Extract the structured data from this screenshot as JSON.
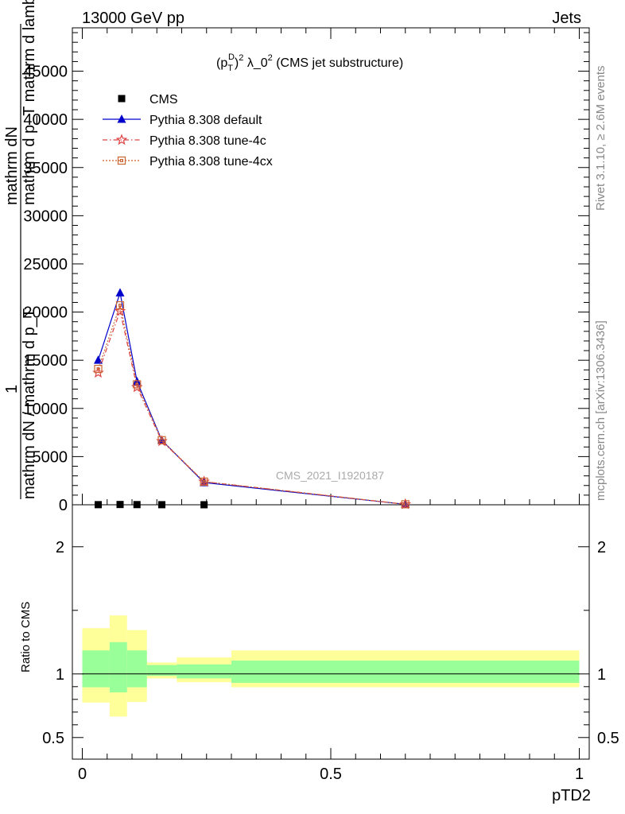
{
  "header": {
    "left": "13000 GeV pp",
    "right": "Jets"
  },
  "side_labels": {
    "rivet": "Rivet 3.1.10, ≥ 2.6M events",
    "mcplots": "mcplots.cern.ch [arXiv:1306.3436]"
  },
  "watermark": "CMS_2021_I1920187",
  "plot_title": {
    "main": "(p",
    "sub": "T",
    "sup": "D",
    "rest": ")",
    "exp": "2",
    "tail": " λ_0",
    "exp2": "2",
    "end": " (CMS jet substructure)"
  },
  "y_title": {
    "numerator": "mathrm dN",
    "denominator_line1": "mathrm d p_T mathrm d lambda",
    "prefix_one": "1",
    "prefix_line": "mathrm dN / mathrm d p_T"
  },
  "ratio_ylabel": "Ratio to CMS",
  "xlabel": "pTD2",
  "colors": {
    "cms": "#000000",
    "default": "#0000cc",
    "tune4c": "#dd4444",
    "tune4cx": "#cc6633",
    "band_inner": "#99ff99",
    "band_outer": "#ffff99"
  },
  "chart_data": [
    {
      "type": "line",
      "panel": "main",
      "xlim": [
        -0.02,
        1.02
      ],
      "ylim": [
        0,
        49500
      ],
      "xticks": [
        0,
        0.5,
        1
      ],
      "yticks": [
        0,
        5000,
        10000,
        15000,
        20000,
        25000,
        30000,
        35000,
        40000,
        45000
      ],
      "ytick_labels": [
        "0",
        "5000",
        "10000",
        "15000",
        "20000",
        "25000",
        "30000",
        "35000",
        "40000",
        "45000"
      ],
      "legend_position": "top-left",
      "series": [
        {
          "name": "CMS",
          "marker": "square",
          "x": [
            0.032,
            0.076,
            0.11,
            0.16,
            0.245
          ],
          "y": [
            12,
            28,
            18,
            8,
            3
          ]
        },
        {
          "name": "Pythia 8.308 default",
          "marker": "triangle",
          "x": [
            0.032,
            0.076,
            0.11,
            0.16,
            0.245,
            0.65
          ],
          "y": [
            15000,
            22000,
            12800,
            6700,
            2300,
            50
          ]
        },
        {
          "name": "Pythia 8.308 tune-4c",
          "marker": "star",
          "x": [
            0.032,
            0.076,
            0.11,
            0.16,
            0.245,
            0.65
          ],
          "y": [
            13700,
            20100,
            12200,
            6600,
            2400,
            50
          ]
        },
        {
          "name": "Pythia 8.308 tune-4cx",
          "marker": "open-square",
          "x": [
            0.032,
            0.076,
            0.11,
            0.16,
            0.245,
            0.65
          ],
          "y": [
            14100,
            20700,
            12500,
            6700,
            2400,
            50
          ]
        }
      ]
    },
    {
      "type": "area",
      "panel": "ratio",
      "xlim": [
        -0.02,
        1.02
      ],
      "ylim": [
        0.33,
        2.33
      ],
      "xticks": [
        0,
        0.5,
        1
      ],
      "xtick_labels": [
        "0",
        "0.5",
        "1"
      ],
      "yticks": [
        0.5,
        1,
        2
      ],
      "ytick_labels": [
        "0.5",
        "1",
        "2"
      ],
      "reference_line": 1,
      "bands": [
        {
          "x0": 0.0,
          "x1": 0.055,
          "inner": [
            0.895,
            1.185
          ],
          "outer": [
            0.775,
            1.36
          ]
        },
        {
          "x0": 0.055,
          "x1": 0.09,
          "inner": [
            0.855,
            1.25
          ],
          "outer": [
            0.665,
            1.46
          ]
        },
        {
          "x0": 0.09,
          "x1": 0.13,
          "inner": [
            0.895,
            1.185
          ],
          "outer": [
            0.78,
            1.345
          ]
        },
        {
          "x0": 0.13,
          "x1": 0.19,
          "inner": [
            0.985,
            1.07
          ],
          "outer": [
            0.965,
            1.09
          ]
        },
        {
          "x0": 0.19,
          "x1": 0.3,
          "inner": [
            0.965,
            1.075
          ],
          "outer": [
            0.935,
            1.13
          ]
        },
        {
          "x0": 0.3,
          "x1": 1.0,
          "inner": [
            0.93,
            1.105
          ],
          "outer": [
            0.895,
            1.185
          ]
        }
      ]
    }
  ]
}
